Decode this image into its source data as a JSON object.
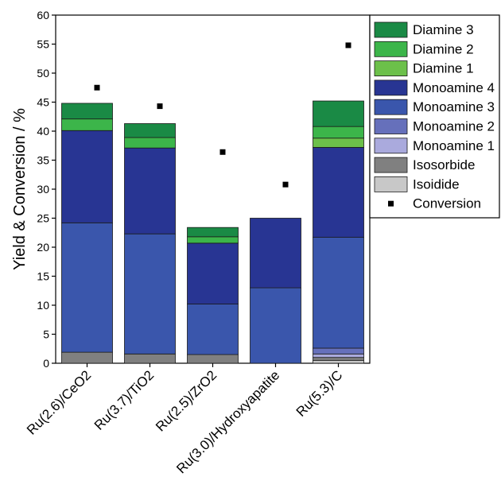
{
  "chart_data": {
    "type": "bar",
    "stacked": true,
    "title": "",
    "xlabel": "",
    "ylabel": "Yield & Conversion / %",
    "ylim": [
      0,
      60
    ],
    "yticks": [
      0,
      5,
      10,
      15,
      20,
      25,
      30,
      35,
      40,
      45,
      50,
      55,
      60
    ],
    "grid": false,
    "legend_position": "right",
    "categories": [
      "Ru(2.6)/CeO2",
      "Ru(3.7)/TiO2",
      "Ru(2.5)/ZrO2",
      "Ru(3.0)/Hydroxyapatite",
      "Ru(5.3)/C"
    ],
    "series": [
      {
        "name": "Isoidide",
        "color": "#c8c8c8",
        "values": [
          0,
          0,
          0,
          0,
          0.5
        ]
      },
      {
        "name": "Isosorbide",
        "color": "#808080",
        "values": [
          1.9,
          1.6,
          1.5,
          0,
          0.5
        ]
      },
      {
        "name": "Monoamine 1",
        "color": "#aaaadd",
        "values": [
          0,
          0,
          0,
          0,
          0.6
        ]
      },
      {
        "name": "Monoamine 2",
        "color": "#6670bb",
        "values": [
          0,
          0,
          0,
          0,
          1.0
        ]
      },
      {
        "name": "Monoamine 3",
        "color": "#3a56ac",
        "values": [
          22.3,
          20.7,
          8.7,
          13.0,
          19.1
        ]
      },
      {
        "name": "Monoamine 4",
        "color": "#283593",
        "values": [
          15.9,
          14.8,
          10.5,
          12.0,
          15.5
        ]
      },
      {
        "name": "Diamine 1",
        "color": "#6cc04a",
        "values": [
          0,
          0,
          0,
          0,
          1.6
        ]
      },
      {
        "name": "Diamine 2",
        "color": "#3cb54a",
        "values": [
          2.0,
          1.8,
          1.1,
          0,
          2.0
        ]
      },
      {
        "name": "Diamine 3",
        "color": "#1a8a45",
        "values": [
          2.7,
          2.4,
          1.6,
          0,
          4.4
        ]
      }
    ],
    "conversion": {
      "name": "Conversion",
      "color": "#000000",
      "values": [
        47.5,
        44.3,
        36.4,
        30.8,
        54.8
      ]
    },
    "legend_order": [
      "Diamine 3",
      "Diamine 2",
      "Diamine 1",
      "Monoamine 4",
      "Monoamine 3",
      "Monoamine 2",
      "Monoamine 1",
      "Isosorbide",
      "Isoidide",
      "Conversion"
    ]
  }
}
